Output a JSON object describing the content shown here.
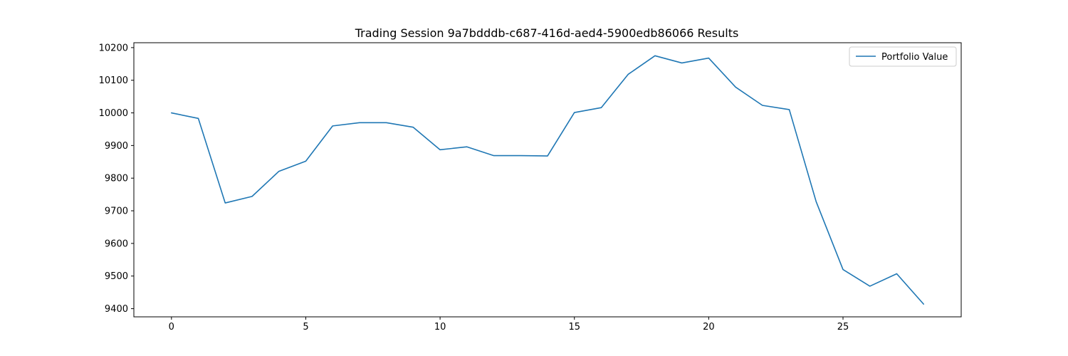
{
  "chart_data": {
    "type": "line",
    "title": "Trading Session 9a7bdddb-c687-416d-aed4-5900edb86066 Results",
    "xlabel": "",
    "ylabel": "",
    "x": [
      0,
      1,
      2,
      3,
      4,
      5,
      6,
      7,
      8,
      9,
      10,
      11,
      12,
      13,
      14,
      15,
      16,
      17,
      18,
      19,
      20,
      21,
      22,
      23,
      24,
      25,
      26,
      27,
      28
    ],
    "series": [
      {
        "name": "Portfolio Value",
        "color": "#1f77b4",
        "values": [
          10000,
          9983,
          9724,
          9744,
          9821,
          9852,
          9960,
          9970,
          9970,
          9956,
          9887,
          9896,
          9869,
          9869,
          9868,
          10001,
          10016,
          10118,
          10175,
          10153,
          10168,
          10079,
          10023,
          10010,
          9728,
          9520,
          9469,
          9507,
          9414
        ]
      }
    ],
    "xticks": [
      0,
      5,
      10,
      15,
      20,
      25
    ],
    "yticks": [
      9400,
      9500,
      9600,
      9700,
      9800,
      9900,
      10000,
      10100,
      10200
    ],
    "xlim": [
      -1.4,
      29.4
    ],
    "ylim": [
      9375,
      10215
    ],
    "grid": false,
    "legend": "top-right"
  }
}
